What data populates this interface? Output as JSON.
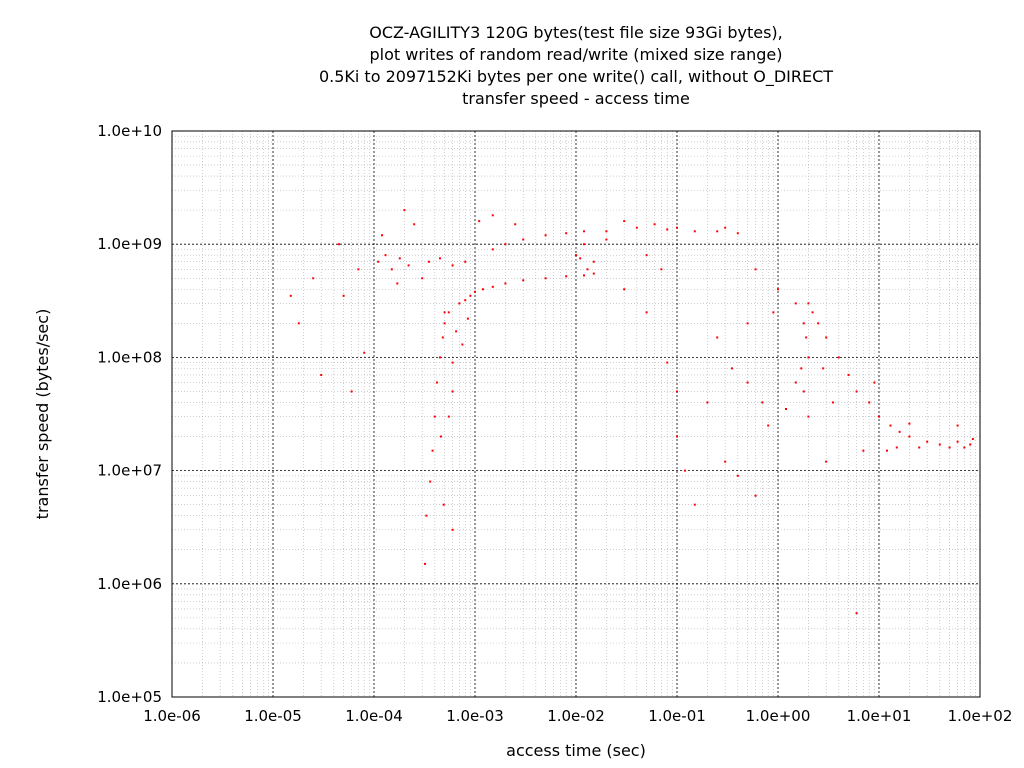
{
  "chart_data": {
    "type": "scatter",
    "title_lines": [
      "OCZ-AGILITY3 120G bytes(test file size 93Gi bytes),",
      "plot writes of random read/write (mixed size range)",
      "0.5Ki to 2097152Ki bytes per one write() call, without O_DIRECT",
      "transfer speed - access time"
    ],
    "xlabel": "access time (sec)",
    "ylabel": "transfer speed (bytes/sec)",
    "x_scale": "log",
    "y_scale": "log",
    "xlim": [
      1e-06,
      100
    ],
    "ylim": [
      100000.0,
      10000000000.0
    ],
    "x_tick_labels": [
      "1.0e-06",
      "1.0e-05",
      "1.0e-04",
      "1.0e-03",
      "1.0e-02",
      "1.0e-01",
      "1.0e+00",
      "1.0e+01",
      "1.0e+02"
    ],
    "y_tick_labels": [
      "1.0e+05",
      "1.0e+06",
      "1.0e+07",
      "1.0e+08",
      "1.0e+09",
      "1.0e+10"
    ],
    "grid": true,
    "legend": "none",
    "point_color": "#ff0000",
    "series": [
      {
        "points": [
          [
            1.8e-05,
            200000000.0
          ],
          [
            3e-05,
            70000000.0
          ],
          [
            5e-05,
            350000000.0
          ],
          [
            6e-05,
            50000000.0
          ],
          [
            7e-05,
            600000000.0
          ],
          [
            1.5e-05,
            350000000.0
          ],
          [
            2.5e-05,
            500000000.0
          ],
          [
            4.5e-05,
            1000000000.0
          ],
          [
            8e-05,
            110000000.0
          ],
          [
            0.00011,
            700000000.0
          ],
          [
            0.00013,
            800000000.0
          ],
          [
            0.00015,
            600000000.0
          ],
          [
            0.00018,
            750000000.0
          ],
          [
            0.0002,
            2000000000.0
          ],
          [
            0.00025,
            1500000000.0
          ],
          [
            0.00022,
            650000000.0
          ],
          [
            0.00012,
            1200000000.0
          ],
          [
            0.00035,
            700000000.0
          ],
          [
            0.00045,
            750000000.0
          ],
          [
            0.0006,
            650000000.0
          ],
          [
            0.0008,
            700000000.0
          ],
          [
            0.0003,
            500000000.0
          ],
          [
            0.00017,
            450000000.0
          ],
          [
            0.00032,
            1500000.0
          ],
          [
            0.00033,
            4000000.0
          ],
          [
            0.00036,
            8000000.0
          ],
          [
            0.00038,
            15000000.0
          ],
          [
            0.0004,
            30000000.0
          ],
          [
            0.00042,
            60000000.0
          ],
          [
            0.00045,
            100000000.0
          ],
          [
            0.00048,
            150000000.0
          ],
          [
            0.0005,
            200000000.0
          ],
          [
            0.00055,
            250000000.0
          ],
          [
            0.0006,
            50000000.0
          ],
          [
            0.0006,
            3000000.0
          ],
          [
            0.00055,
            30000000.0
          ],
          [
            0.00046,
            20000000.0
          ],
          [
            0.00049,
            5000000.0
          ],
          [
            0.0007,
            300000000.0
          ],
          [
            0.0008,
            320000000.0
          ],
          [
            0.0009,
            350000000.0
          ],
          [
            0.001,
            380000000.0
          ],
          [
            0.0012,
            400000000.0
          ],
          [
            0.0015,
            420000000.0
          ],
          [
            0.002,
            450000000.0
          ],
          [
            0.003,
            480000000.0
          ],
          [
            0.005,
            500000000.0
          ],
          [
            0.008,
            520000000.0
          ],
          [
            0.012,
            530000000.0
          ],
          [
            0.015,
            550000000.0
          ],
          [
            0.0011,
            1600000000.0
          ],
          [
            0.0015,
            1800000000.0
          ],
          [
            0.0025,
            1500000000.0
          ],
          [
            0.0015,
            900000000.0
          ],
          [
            0.002,
            1000000000.0
          ],
          [
            0.003,
            1100000000.0
          ],
          [
            0.005,
            1200000000.0
          ],
          [
            0.008,
            1250000000.0
          ],
          [
            0.012,
            1000000000.0
          ],
          [
            0.015,
            700000000.0
          ],
          [
            0.012,
            1300000000.0
          ],
          [
            0.02,
            1300000000.0
          ],
          [
            0.04,
            1400000000.0
          ],
          [
            0.08,
            1350000000.0
          ],
          [
            0.15,
            1300000000.0
          ],
          [
            0.25,
            1300000000.0
          ],
          [
            0.4,
            1250000000.0
          ],
          [
            0.01,
            800000000.0
          ],
          [
            0.0005,
            250000000.0
          ],
          [
            0.00065,
            170000000.0
          ],
          [
            0.00085,
            220000000.0
          ],
          [
            0.0006,
            90000000.0
          ],
          [
            0.00075,
            130000000.0
          ],
          [
            0.011,
            750000000.0
          ],
          [
            0.013,
            600000000.0
          ],
          [
            0.02,
            1100000000.0
          ],
          [
            0.03,
            1600000000.0
          ],
          [
            0.06,
            1500000000.0
          ],
          [
            0.1,
            1400000000.0
          ],
          [
            0.3,
            1400000000.0
          ],
          [
            0.03,
            400000000.0
          ],
          [
            0.05,
            250000000.0
          ],
          [
            0.08,
            90000000.0
          ],
          [
            0.1,
            50000000.0
          ],
          [
            0.12,
            10000000.0
          ],
          [
            0.15,
            5000000.0
          ],
          [
            0.05,
            800000000.0
          ],
          [
            0.07,
            600000000.0
          ],
          [
            0.2,
            40000000.0
          ],
          [
            0.1,
            20000000.0
          ],
          [
            0.25,
            150000000.0
          ],
          [
            0.35,
            80000000.0
          ],
          [
            0.5,
            200000000.0
          ],
          [
            0.6,
            600000000.0
          ],
          [
            0.7,
            40000000.0
          ],
          [
            0.8,
            25000000.0
          ],
          [
            0.4,
            9000000.0
          ],
          [
            0.6,
            6000000.0
          ],
          [
            0.5,
            60000000.0
          ],
          [
            0.9,
            250000000.0
          ],
          [
            0.3,
            12000000.0
          ],
          [
            1.0,
            400000000.0
          ],
          [
            1.5,
            300000000.0
          ],
          [
            1.8,
            200000000.0
          ],
          [
            2.0,
            300000000.0
          ],
          [
            2.2,
            250000000.0
          ],
          [
            1.9,
            150000000.0
          ],
          [
            1.7,
            80000000.0
          ],
          [
            1.8,
            50000000.0
          ],
          [
            2.0,
            30000000.0
          ],
          [
            2.5,
            200000000.0
          ],
          [
            3.0,
            150000000.0
          ],
          [
            4.0,
            100000000.0
          ],
          [
            5.0,
            70000000.0
          ],
          [
            2.0,
            100000000.0
          ],
          [
            1.5,
            60000000.0
          ],
          [
            1.2,
            35000000.0
          ],
          [
            2.8,
            80000000.0
          ],
          [
            3.5,
            40000000.0
          ],
          [
            3.0,
            12000000.0
          ],
          [
            6.0,
            550000.0
          ],
          [
            6.0,
            50000000.0
          ],
          [
            8.0,
            40000000.0
          ],
          [
            10.0,
            30000000.0
          ],
          [
            13.0,
            25000000.0
          ],
          [
            16.0,
            22000000.0
          ],
          [
            20.0,
            20000000.0
          ],
          [
            30.0,
            18000000.0
          ],
          [
            40.0,
            17000000.0
          ],
          [
            60.0,
            18000000.0
          ],
          [
            80.0,
            17000000.0
          ],
          [
            12.0,
            15000000.0
          ],
          [
            15.0,
            16000000.0
          ],
          [
            25.0,
            16000000.0
          ],
          [
            50.0,
            16000000.0
          ],
          [
            70.0,
            16000000.0
          ],
          [
            85.0,
            19000000.0
          ],
          [
            60.0,
            25000000.0
          ],
          [
            7.0,
            15000000.0
          ],
          [
            9.0,
            60000000.0
          ],
          [
            20.0,
            26000000.0
          ]
        ]
      }
    ]
  }
}
